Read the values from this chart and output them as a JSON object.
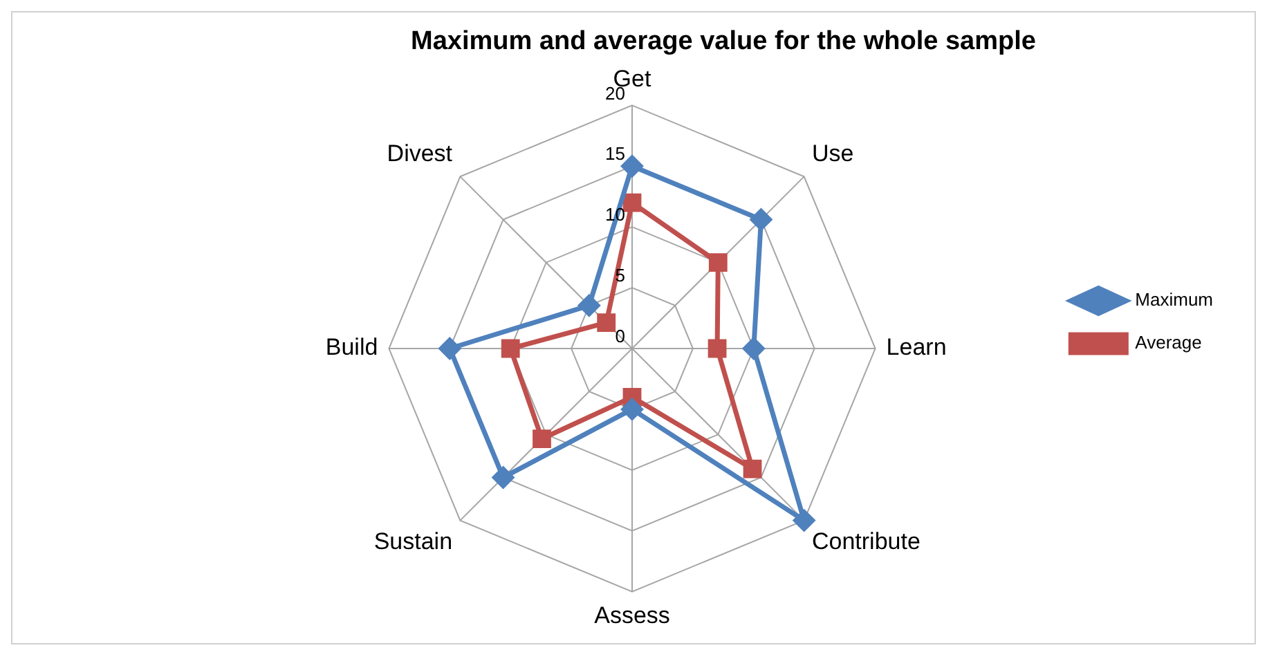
{
  "chart_data": {
    "type": "radar",
    "title": "Maximum and average value for the whole sample",
    "categories": [
      "Get",
      "Use",
      "Learn",
      "Contribute",
      "Assess",
      "Sustain",
      "Build",
      "Divest"
    ],
    "series": [
      {
        "name": "Maximum",
        "color": "#4f81bd",
        "values": [
          15,
          15,
          10,
          20,
          5,
          15,
          15,
          5
        ]
      },
      {
        "name": "Average",
        "color": "#c0504d",
        "values": [
          12,
          10,
          7,
          14,
          4,
          10.5,
          10,
          3
        ]
      }
    ],
    "ylim": [
      0,
      20
    ],
    "yticks": [
      0,
      5,
      10,
      15,
      20
    ],
    "grid": true,
    "legend": "right"
  }
}
